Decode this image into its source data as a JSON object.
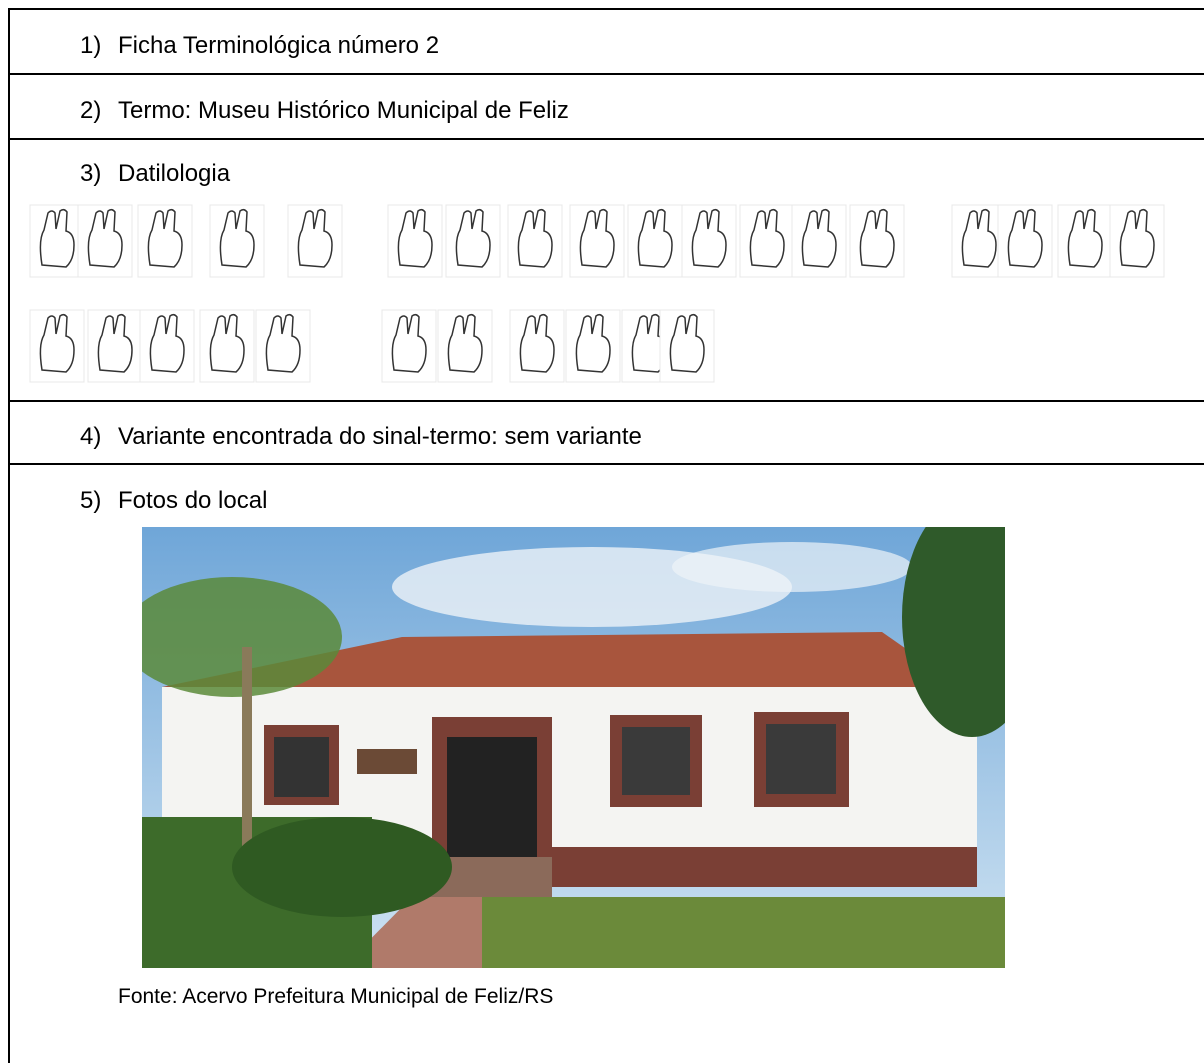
{
  "items": [
    {
      "number": "1)",
      "text": "Ficha Terminológica número 2"
    },
    {
      "number": "2)",
      "text": "Termo: Museu Histórico Municipal de Feliz"
    },
    {
      "number": "3)",
      "text": "Datilologia"
    },
    {
      "number": "4)",
      "text": "Variante encontrada do sinal-termo: sem variante"
    },
    {
      "number": "5)",
      "text": "Fotos do local"
    }
  ],
  "photo_caption": "Fonte: Acervo Prefeitura Municipal de Feliz/RS"
}
